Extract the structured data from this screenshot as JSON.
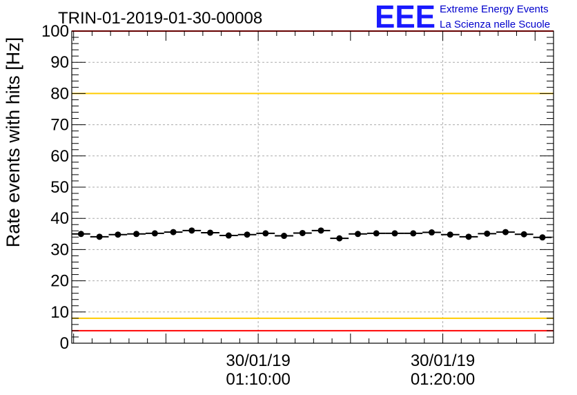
{
  "title": "TRIN-01-2019-01-30-00008",
  "logo": {
    "mark": "EEE",
    "line1": "Extreme Energy Events",
    "line2": "La Scienza nelle Scuole",
    "color": "#1a1aff"
  },
  "colors": {
    "data": "#000000",
    "red_line": "#ff0000",
    "yellow_line": "#ffcc00",
    "grid": "#aaaaaa"
  },
  "chart_data": {
    "type": "scatter",
    "title": "TRIN-01-2019-01-30-00008",
    "ylabel": "Rate events with hits [Hz]",
    "xlabel": "",
    "ylim": [
      0,
      100
    ],
    "yticks": [
      0,
      10,
      20,
      30,
      40,
      50,
      60,
      70,
      80,
      90,
      100
    ],
    "x_unit": "minutes after 01:00:00 on 30/01/19",
    "xlim": [
      0.9,
      27.0
    ],
    "xticks": [
      {
        "x": 11.0,
        "date": "30/01/19",
        "time": "01:10:00"
      },
      {
        "x": 21.0,
        "date": "30/01/19",
        "time": "01:20:00"
      }
    ],
    "grid": true,
    "bin_width": 1.0,
    "x": [
      1.4,
      2.4,
      3.4,
      4.4,
      5.4,
      6.4,
      7.4,
      8.4,
      9.4,
      10.4,
      11.4,
      12.4,
      13.4,
      14.4,
      15.4,
      16.4,
      17.4,
      18.4,
      19.4,
      20.4,
      21.4,
      22.4,
      23.4,
      24.4,
      25.4,
      26.4
    ],
    "values": [
      35.0,
      34.1,
      34.8,
      35.0,
      35.2,
      35.6,
      36.1,
      35.4,
      34.5,
      34.8,
      35.2,
      34.4,
      35.3,
      36.1,
      33.6,
      35.0,
      35.2,
      35.2,
      35.2,
      35.5,
      34.8,
      34.1,
      35.1,
      35.6,
      34.9,
      33.9
    ],
    "hlines": [
      {
        "y": 100,
        "color": "red"
      },
      {
        "y": 80,
        "color": "yellow"
      },
      {
        "y": 8,
        "color": "yellow"
      },
      {
        "y": 4,
        "color": "red"
      }
    ]
  }
}
